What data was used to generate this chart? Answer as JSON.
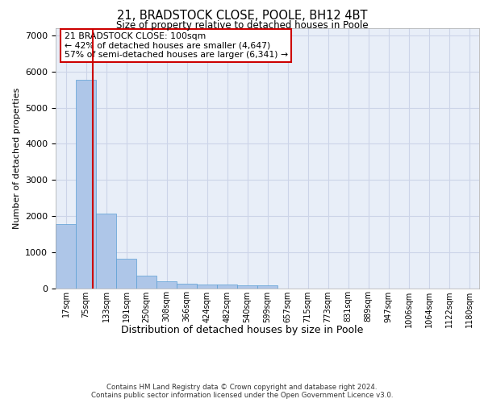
{
  "title": "21, BRADSTOCK CLOSE, POOLE, BH12 4BT",
  "subtitle": "Size of property relative to detached houses in Poole",
  "xlabel": "Distribution of detached houses by size in Poole",
  "ylabel": "Number of detached properties",
  "categories": [
    "17sqm",
    "75sqm",
    "133sqm",
    "191sqm",
    "250sqm",
    "308sqm",
    "366sqm",
    "424sqm",
    "482sqm",
    "540sqm",
    "599sqm",
    "657sqm",
    "715sqm",
    "773sqm",
    "831sqm",
    "889sqm",
    "947sqm",
    "1006sqm",
    "1064sqm",
    "1122sqm",
    "1180sqm"
  ],
  "values": [
    1780,
    5780,
    2060,
    820,
    340,
    185,
    120,
    110,
    110,
    80,
    80,
    0,
    0,
    0,
    0,
    0,
    0,
    0,
    0,
    0,
    0
  ],
  "bar_color": "#aec6e8",
  "bar_edge_color": "#5a9fd4",
  "property_label": "21 BRADSTOCK CLOSE: 100sqm",
  "smaller_pct": 42,
  "smaller_count": 4647,
  "larger_pct": 57,
  "larger_count": 6341,
  "vline_color": "#cc0000",
  "vline_position": 1.35,
  "annotation_box_color": "#cc0000",
  "ylim": [
    0,
    7200
  ],
  "yticks": [
    0,
    1000,
    2000,
    3000,
    4000,
    5000,
    6000,
    7000
  ],
  "grid_color": "#ccd4e8",
  "background_color": "#e8eef8",
  "footer_line1": "Contains HM Land Registry data © Crown copyright and database right 2024.",
  "footer_line2": "Contains public sector information licensed under the Open Government Licence v3.0."
}
